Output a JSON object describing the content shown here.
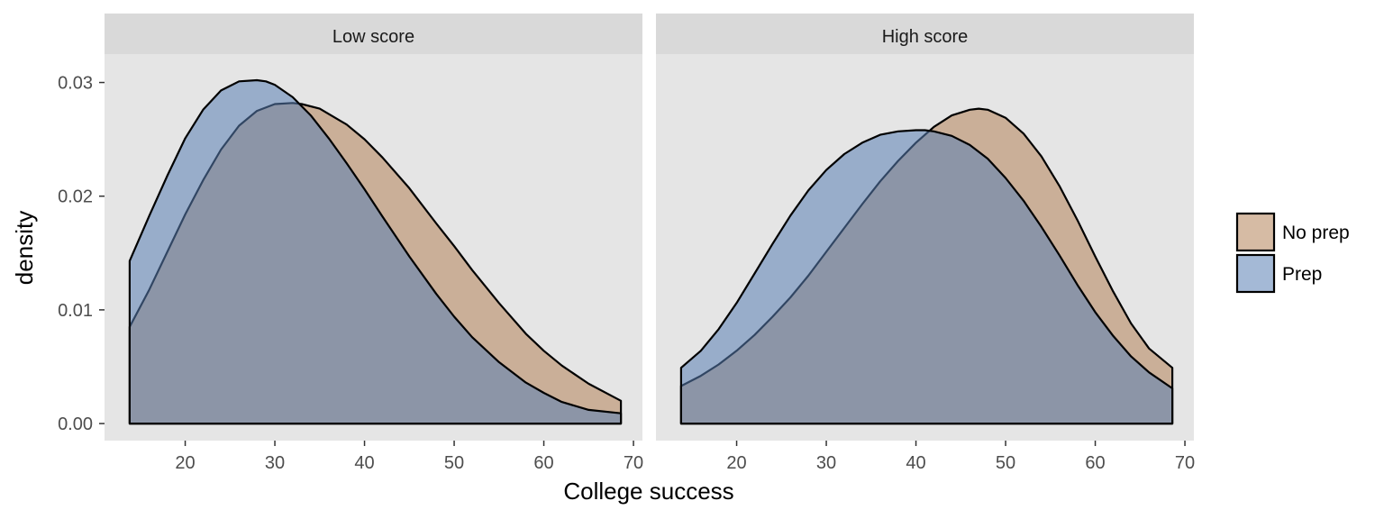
{
  "chart_data": {
    "type": "area",
    "xlabel": "College success",
    "ylabel": "density",
    "xlim": [
      11,
      71
    ],
    "ylim": [
      -0.0015,
      0.0325
    ],
    "x_ticks": [
      "20",
      "30",
      "40",
      "50",
      "60",
      "70"
    ],
    "y_ticks": [
      "0.00",
      "0.01",
      "0.02",
      "0.03"
    ],
    "grid": false,
    "legend": {
      "position": "right",
      "entries": [
        {
          "label": "No prep",
          "color": "#b5835a"
        },
        {
          "label": "Prep",
          "color": "#5a7fb5"
        }
      ]
    },
    "panels": [
      {
        "title": "Low score",
        "series": [
          {
            "name": "No prep",
            "color": "#b5835a",
            "x": [
              13.8,
              16,
              18,
              20,
              22,
              24,
              26,
              28,
              30,
              32,
              33,
              35,
              38,
              40,
              42,
              45,
              48,
              50,
              52,
              55,
              58,
              60,
              62,
              65,
              68.6
            ],
            "y": [
              0.0085,
              0.0118,
              0.0151,
              0.0184,
              0.0214,
              0.0241,
              0.0262,
              0.0275,
              0.0281,
              0.0282,
              0.0281,
              0.0277,
              0.0263,
              0.025,
              0.0234,
              0.0207,
              0.0176,
              0.0156,
              0.0135,
              0.0106,
              0.0079,
              0.0064,
              0.0051,
              0.0035,
              0.002
            ]
          },
          {
            "name": "Prep",
            "color": "#5a7fb5",
            "x": [
              13.8,
              16,
              18,
              20,
              22,
              24,
              26,
              28,
              29,
              30,
              32,
              34,
              36,
              38,
              40,
              42,
              45,
              48,
              50,
              52,
              55,
              58,
              60,
              62,
              65,
              68.6
            ],
            "y": [
              0.0143,
              0.0183,
              0.0218,
              0.0251,
              0.0276,
              0.0293,
              0.0301,
              0.0302,
              0.0301,
              0.0298,
              0.0287,
              0.0271,
              0.0251,
              0.0229,
              0.0206,
              0.0182,
              0.0147,
              0.0114,
              0.0094,
              0.0076,
              0.0054,
              0.0036,
              0.0027,
              0.0019,
              0.0012,
              0.0009
            ]
          }
        ]
      },
      {
        "title": "High score",
        "series": [
          {
            "name": "No prep",
            "color": "#b5835a",
            "x": [
              13.8,
              16,
              18,
              20,
              22,
              24,
              26,
              28,
              30,
              32,
              34,
              36,
              38,
              40,
              42,
              44,
              46,
              47,
              48,
              50,
              52,
              54,
              56,
              58,
              60,
              62,
              64,
              66,
              68.6
            ],
            "y": [
              0.0033,
              0.0042,
              0.0052,
              0.0064,
              0.0078,
              0.0094,
              0.0111,
              0.013,
              0.0151,
              0.0172,
              0.0193,
              0.0213,
              0.0231,
              0.0247,
              0.0261,
              0.0271,
              0.0276,
              0.0277,
              0.0276,
              0.0269,
              0.0255,
              0.0235,
              0.0209,
              0.0179,
              0.0147,
              0.0116,
              0.0088,
              0.0066,
              0.0049
            ]
          },
          {
            "name": "Prep",
            "color": "#5a7fb5",
            "x": [
              13.8,
              16,
              18,
              20,
              22,
              24,
              26,
              28,
              30,
              32,
              34,
              36,
              38,
              40,
              41,
              42,
              44,
              46,
              48,
              50,
              52,
              54,
              56,
              58,
              60,
              62,
              64,
              66,
              68.6
            ],
            "y": [
              0.0049,
              0.0064,
              0.0083,
              0.0106,
              0.0132,
              0.0158,
              0.0183,
              0.0205,
              0.0223,
              0.0237,
              0.0247,
              0.0254,
              0.0257,
              0.0258,
              0.0258,
              0.0257,
              0.0253,
              0.0245,
              0.0233,
              0.0216,
              0.0196,
              0.0173,
              0.0148,
              0.0122,
              0.0098,
              0.0077,
              0.0059,
              0.0045,
              0.0031
            ]
          }
        ]
      }
    ]
  }
}
